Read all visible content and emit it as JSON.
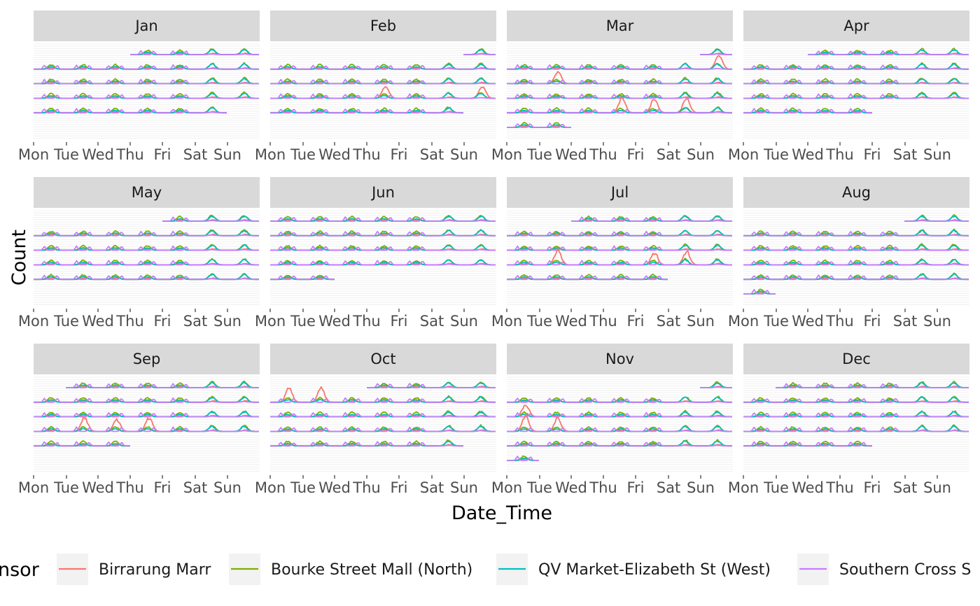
{
  "chart_data": {
    "type": "line",
    "layout": "calendar facet grid (one panel per month, rows of weeks)",
    "xlabel": "Date_Time",
    "ylabel": "Count",
    "weekday_labels": [
      "Mon",
      "Tue",
      "Wed",
      "Thu",
      "Fri",
      "Sat",
      "Sun"
    ],
    "legend": {
      "title": "Sensor",
      "title_visible": "nsor",
      "placement": "bottom",
      "entries": [
        {
          "name": "Birrarung Marr",
          "color": "#F8766D"
        },
        {
          "name": "Bourke Street Mall (North)",
          "color": "#7CAE00"
        },
        {
          "name": "QV Market-Elizabeth St (West)",
          "color": "#00BFC4"
        },
        {
          "name": "Southern Cross Station",
          "color": "#C77CFF"
        }
      ],
      "last_entry_visible": "Southern Cross S"
    },
    "panels": [
      {
        "month": "Jan",
        "first_day": 3,
        "days": 31
      },
      {
        "month": "Feb",
        "first_day": 6,
        "days": 28
      },
      {
        "month": "Mar",
        "first_day": 6,
        "days": 31
      },
      {
        "month": "Apr",
        "first_day": 2,
        "days": 30
      },
      {
        "month": "May",
        "first_day": 4,
        "days": 31
      },
      {
        "month": "Jun",
        "first_day": 0,
        "days": 30
      },
      {
        "month": "Jul",
        "first_day": 2,
        "days": 31
      },
      {
        "month": "Aug",
        "first_day": 5,
        "days": 31
      },
      {
        "month": "Sep",
        "first_day": 1,
        "days": 30
      },
      {
        "month": "Oct",
        "first_day": 3,
        "days": 31
      },
      {
        "month": "Nov",
        "first_day": 6,
        "days": 30
      },
      {
        "month": "Dec",
        "first_day": 1,
        "days": 31
      }
    ],
    "series_profile": {
      "Birrarung Marr": {
        "base_peak": 0.1,
        "spike_days": {
          "Feb": [
            19,
            22
          ],
          "Mar": [
            8,
            10,
            26,
            27,
            28
          ],
          "Jul": [
            21,
            24,
            25
          ],
          "Sep": [
            22,
            23,
            24
          ],
          "Oct": [
            5,
            6
          ],
          "Nov": [
            9,
            16,
            17
          ]
        }
      },
      "Bourke Street Mall (North)": {
        "weekday_peak": 0.35,
        "weekend_peak": 0.45
      },
      "QV Market-Elizabeth St (West)": {
        "weekday_peak": 0.2,
        "weekend_peak": 0.4
      },
      "Southern Cross Station": {
        "weekday_peak": 0.3,
        "weekend_peak": 0.05
      }
    }
  }
}
